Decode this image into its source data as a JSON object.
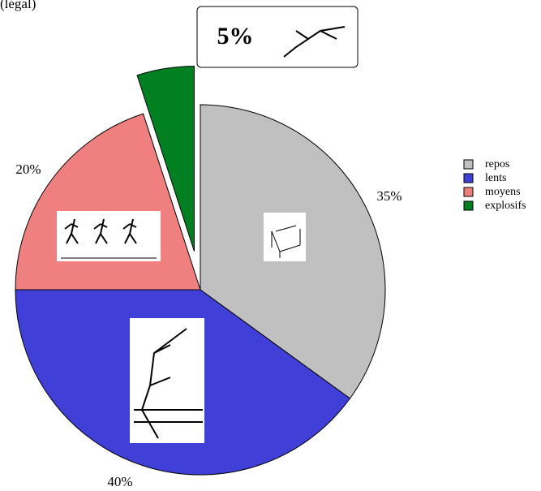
{
  "chart_data": {
    "type": "pie",
    "subtitle": "(légal)",
    "categories": [
      "repos",
      "lents",
      "moyens",
      "explosifs"
    ],
    "values": [
      35,
      40,
      20,
      5
    ],
    "value_labels": [
      "35%",
      "40%",
      "20%",
      "5%"
    ],
    "colors": [
      "#c0c0c0",
      "#4040d8",
      "#f08080",
      "#008020"
    ],
    "exploded": [
      false,
      false,
      false,
      true
    ],
    "legend": "right"
  }
}
